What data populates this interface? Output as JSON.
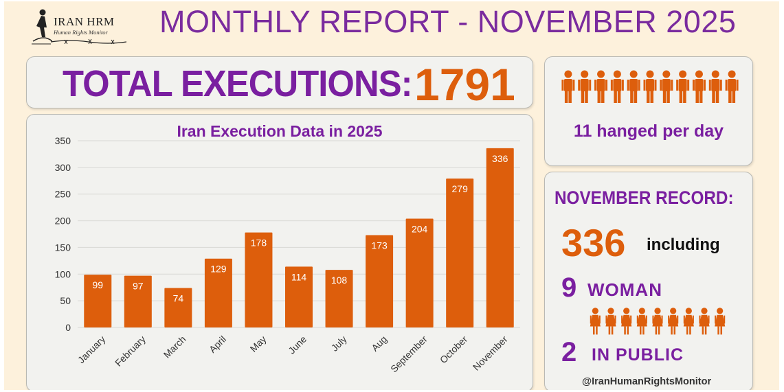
{
  "header": {
    "logo_name": "IRAN HRM",
    "logo_subtitle": "Human Rights Monitor",
    "title": "MONTHLY REPORT - NOVEMBER 2025"
  },
  "total": {
    "label": "TOTAL EXECUTIONS:",
    "value": "1791"
  },
  "per_day": {
    "text": "11 hanged per day",
    "icon_count": 11,
    "icon": "person-icon"
  },
  "november_record": {
    "title": "NOVEMBER RECORD:",
    "count": "336",
    "including": "including",
    "women_count": "9",
    "women_label": "WOMAN",
    "women_icon_count": 9,
    "public_count": "2",
    "public_label": "IN PUBLIC",
    "handle": "@IranHumanRightsMonitor"
  },
  "colors": {
    "purple": "#7a1fa0",
    "orange": "#dd5e0c",
    "card_bg": "#f2f2ef",
    "page_bg": "#fdf1dc"
  },
  "chart_data": {
    "type": "bar",
    "title": "Iran Execution Data in 2025",
    "categories": [
      "January",
      "February",
      "March",
      "April",
      "May",
      "June",
      "July",
      "Aug",
      "September",
      "October",
      "November"
    ],
    "values": [
      99,
      97,
      74,
      129,
      178,
      114,
      108,
      173,
      204,
      279,
      336
    ],
    "y_ticks": [
      0,
      50,
      100,
      150,
      200,
      250,
      300,
      350
    ],
    "ylim": [
      0,
      350
    ],
    "grid": true,
    "legend": "none",
    "bar_color": "#dd5e0c",
    "data_labels": "inside-top"
  }
}
